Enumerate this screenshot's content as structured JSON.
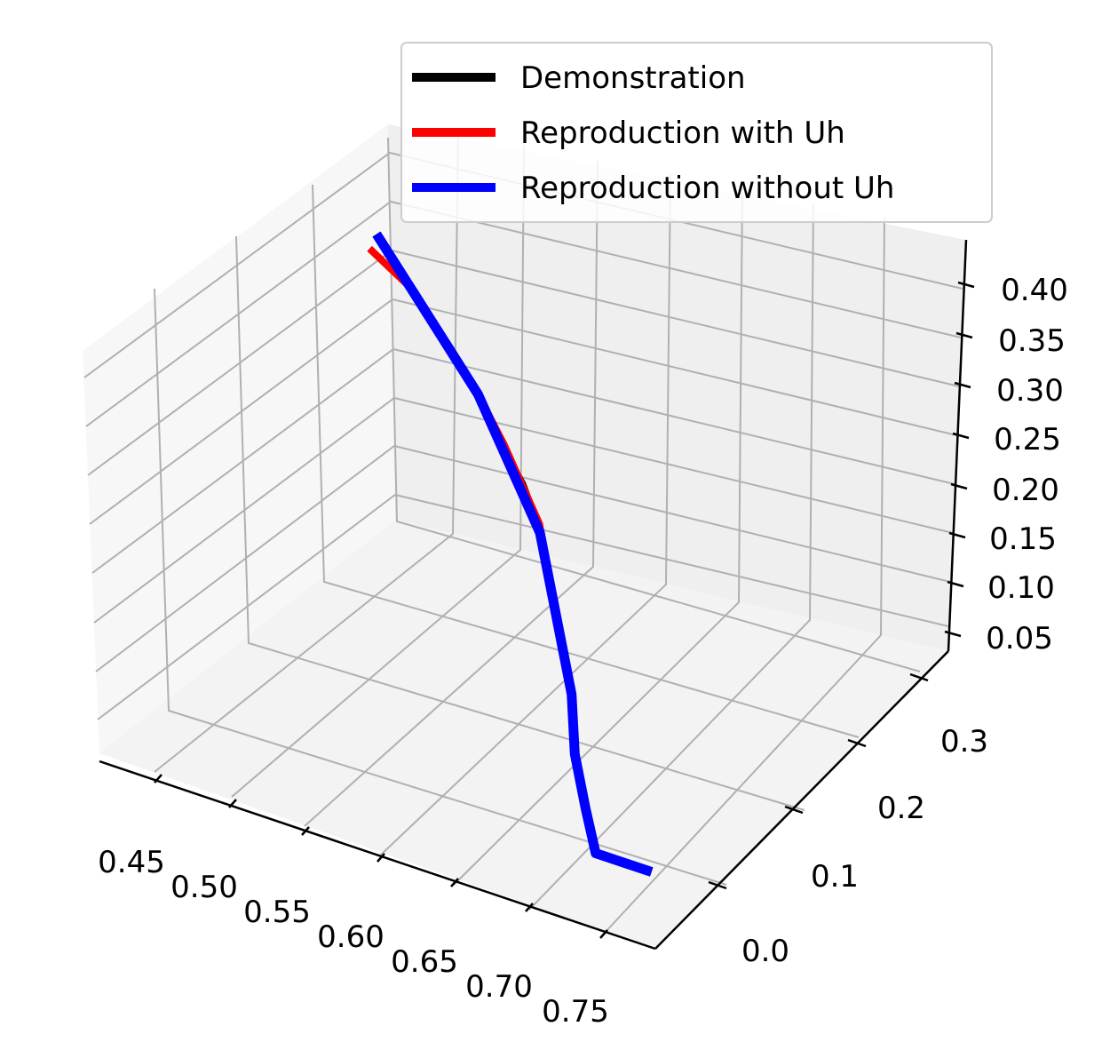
{
  "chart_data": {
    "type": "line",
    "projection": "3d",
    "title": "",
    "xlabel": "",
    "ylabel": "",
    "zlabel": "",
    "x_ticks": [
      "0.45",
      "0.50",
      "0.55",
      "0.60",
      "0.65",
      "0.70",
      "0.75"
    ],
    "y_ticks": [
      "0.0",
      "0.1",
      "0.2",
      "0.3"
    ],
    "z_ticks": [
      "0.05",
      "0.10",
      "0.15",
      "0.20",
      "0.25",
      "0.30",
      "0.35",
      "0.40"
    ],
    "xlim": [
      0.43,
      0.78
    ],
    "ylim": [
      -0.06,
      0.34
    ],
    "zlim": [
      0.03,
      0.43
    ],
    "grid": true,
    "legend_position": "top-right",
    "series": [
      {
        "name": "Demonstration",
        "color": "#000000",
        "x": [
          0.44,
          0.47,
          0.5,
          0.53,
          0.56,
          0.58,
          0.6,
          0.62,
          0.64,
          0.66,
          0.68,
          0.7,
          0.72,
          0.74,
          0.76
        ],
        "y": [
          0.31,
          0.29,
          0.27,
          0.25,
          0.22,
          0.2,
          0.18,
          0.15,
          0.12,
          0.09,
          0.05,
          0.02,
          -0.01,
          -0.01,
          -0.02
        ],
        "z": [
          0.4,
          0.37,
          0.34,
          0.31,
          0.28,
          0.27,
          0.24,
          0.21,
          0.18,
          0.15,
          0.12,
          0.09,
          0.07,
          0.07,
          0.08
        ]
      },
      {
        "name": "Reproduction with Uh",
        "color": "#ff0000",
        "x": [
          0.44,
          0.47,
          0.5,
          0.53,
          0.56,
          0.58,
          0.6,
          0.62,
          0.64,
          0.66,
          0.68,
          0.7,
          0.72,
          0.74,
          0.76
        ],
        "y": [
          0.3,
          0.29,
          0.27,
          0.25,
          0.22,
          0.2,
          0.18,
          0.15,
          0.12,
          0.09,
          0.05,
          0.02,
          -0.01,
          -0.01,
          -0.02
        ],
        "z": [
          0.39,
          0.37,
          0.34,
          0.31,
          0.29,
          0.27,
          0.25,
          0.21,
          0.18,
          0.15,
          0.12,
          0.09,
          0.07,
          0.07,
          0.08
        ]
      },
      {
        "name": "Reproduction without Uh",
        "color": "#0000ff",
        "x": [
          0.44,
          0.47,
          0.5,
          0.53,
          0.56,
          0.58,
          0.6,
          0.62,
          0.64,
          0.66,
          0.68,
          0.7,
          0.72,
          0.74,
          0.76
        ],
        "y": [
          0.31,
          0.29,
          0.27,
          0.25,
          0.22,
          0.2,
          0.18,
          0.15,
          0.12,
          0.09,
          0.05,
          0.02,
          -0.01,
          -0.01,
          -0.02
        ],
        "z": [
          0.4,
          0.37,
          0.34,
          0.31,
          0.28,
          0.26,
          0.24,
          0.21,
          0.18,
          0.15,
          0.12,
          0.09,
          0.07,
          0.07,
          0.08
        ]
      }
    ]
  }
}
